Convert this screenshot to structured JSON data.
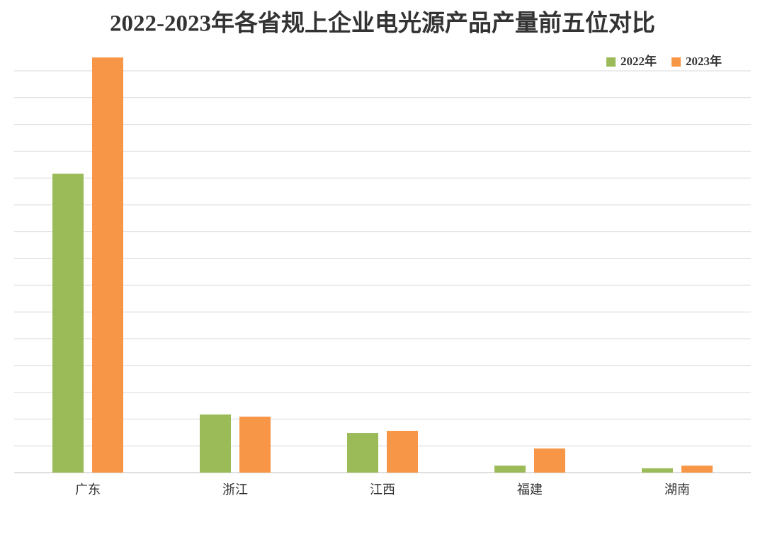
{
  "chart_data": {
    "type": "bar",
    "title": "2022-2023年各省规上企业电光源产品产量前五位对比",
    "categories": [
      "广东",
      "浙江",
      "江西",
      "福建",
      "湖南"
    ],
    "series": [
      {
        "name": "2022年",
        "color": "#9bbb59",
        "values": [
          11.16,
          2.17,
          1.48,
          0.26,
          0.16
        ]
      },
      {
        "name": "2023年",
        "color": "#f79646",
        "values": [
          15.5,
          2.09,
          1.56,
          0.9,
          0.26
        ]
      }
    ],
    "ylim": [
      0,
      16
    ],
    "yticks": [
      0,
      1,
      2,
      3,
      4,
      5,
      6,
      7,
      8,
      9,
      10,
      11,
      12,
      13,
      14,
      15
    ],
    "grid": true,
    "legend": "top-right"
  }
}
